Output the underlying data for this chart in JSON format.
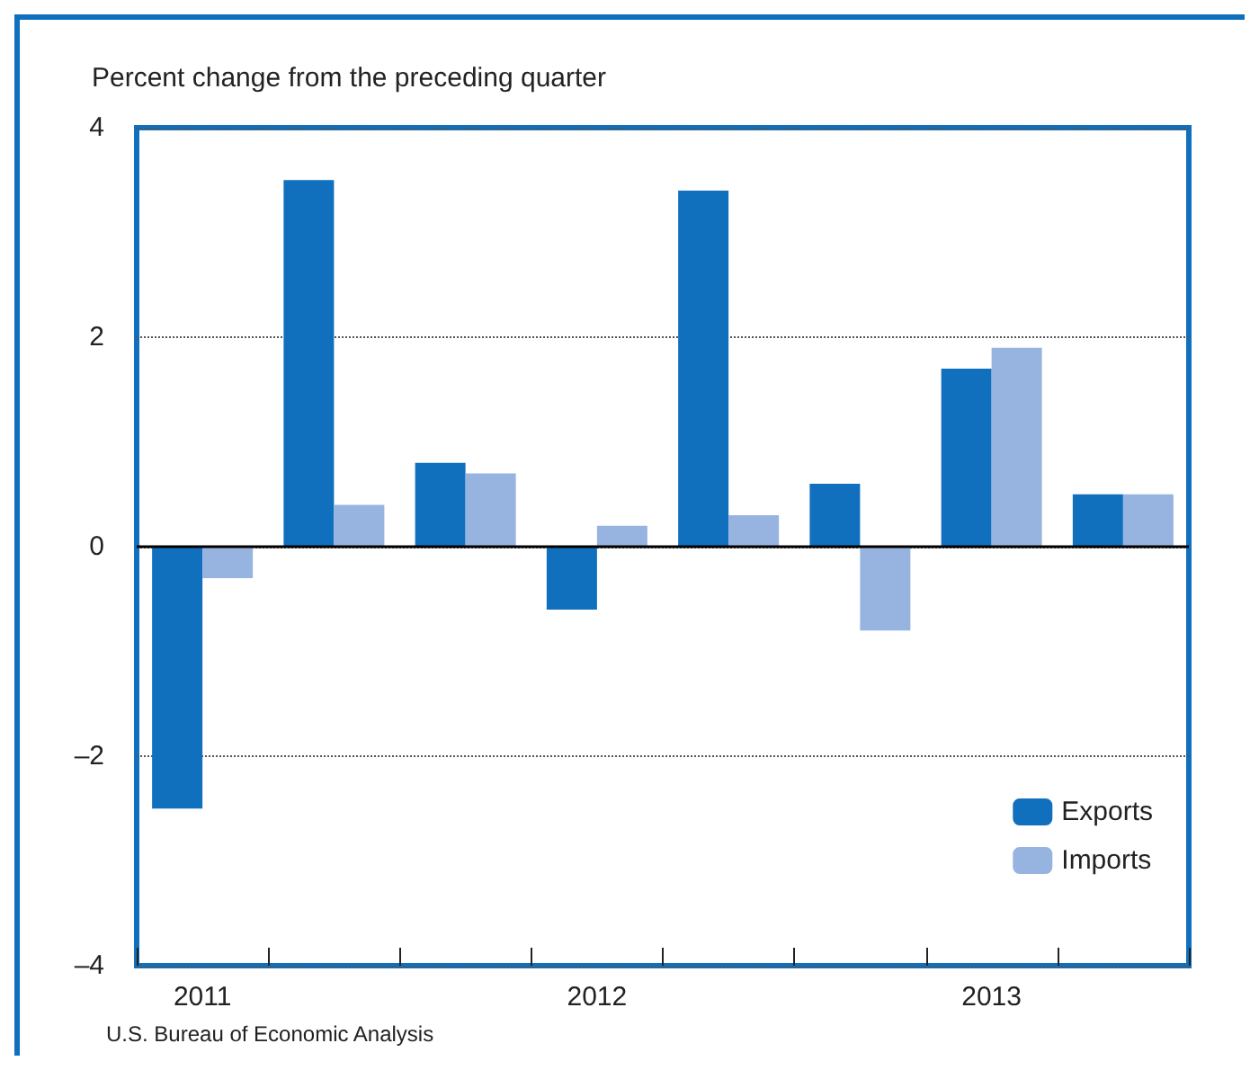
{
  "chart_data": {
    "type": "bar",
    "ylabel": "Percent change from the preceding quarter",
    "categories": [
      "2011",
      null,
      null,
      "2012",
      null,
      null,
      "2013",
      null
    ],
    "series": [
      {
        "name": "Exports",
        "color": "#1170bd",
        "values": [
          -2.5,
          3.5,
          0.8,
          -0.6,
          3.4,
          0.6,
          1.7,
          0.5
        ]
      },
      {
        "name": "Imports",
        "color": "#97b3e0",
        "values": [
          -0.3,
          0.4,
          0.7,
          0.2,
          0.3,
          -0.8,
          1.9,
          0.5
        ]
      }
    ],
    "ylim": [
      -4,
      4
    ],
    "yticks": [
      {
        "value": -4,
        "label": "–4"
      },
      {
        "value": -2,
        "label": "–2"
      },
      0,
      2,
      4
    ],
    "grid": "y",
    "legend": "bottom right",
    "ref_lines": [
      {
        "axis": "y",
        "value": 0,
        "color": "#000000",
        "line_style": "solid"
      }
    ],
    "annotations": [
      "U.S. Bureau of Economic Analysis"
    ]
  }
}
